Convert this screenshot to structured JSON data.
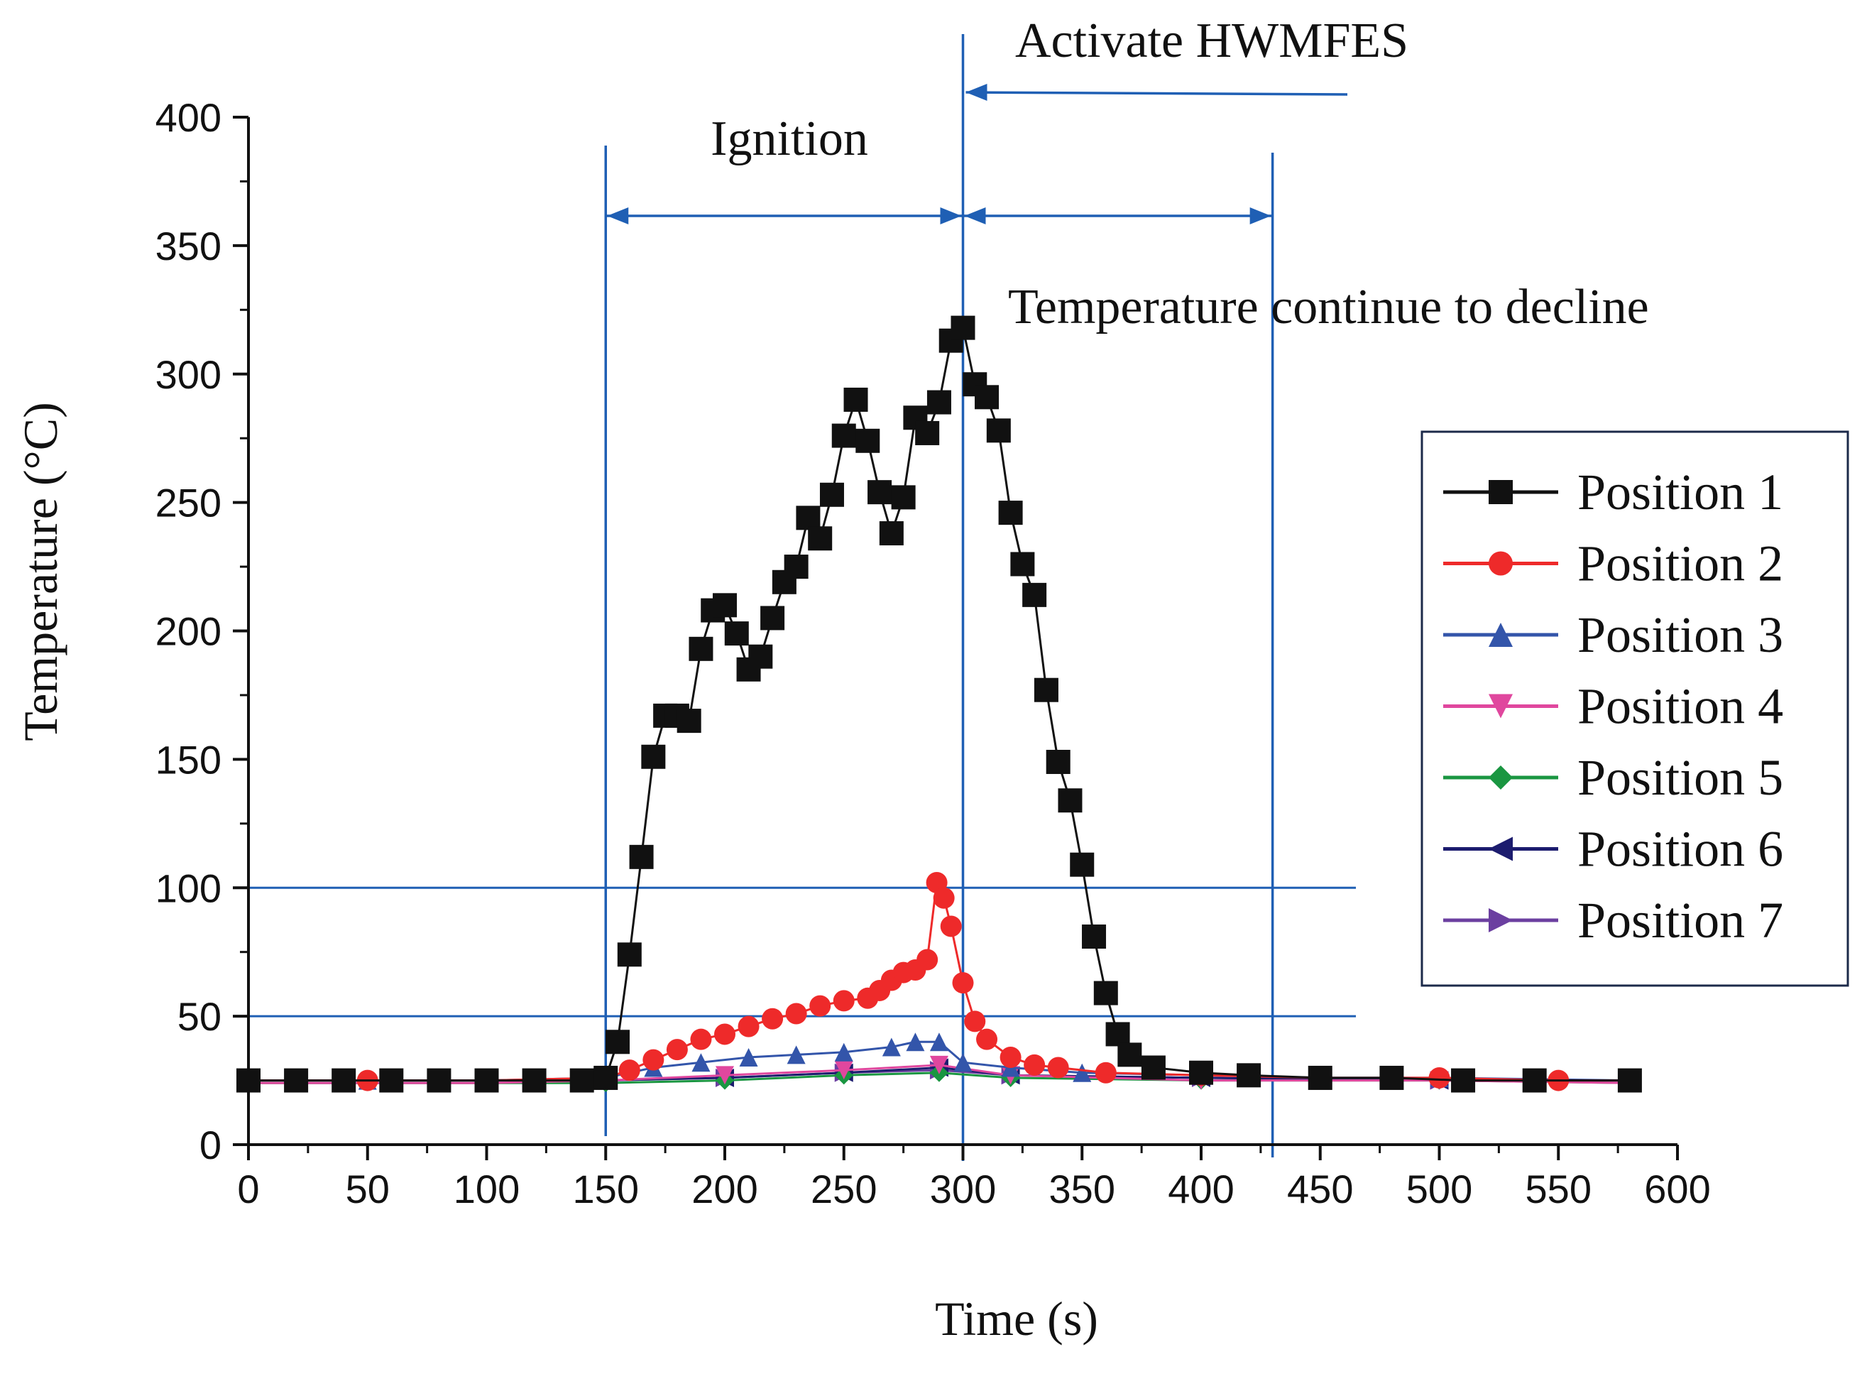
{
  "chart_data": {
    "type": "line",
    "xlabel": "Time (s)",
    "ylabel": "Temperature (°C)",
    "xlim": [
      0,
      600
    ],
    "ylim": [
      0,
      400
    ],
    "xticks": [
      0,
      50,
      100,
      150,
      200,
      250,
      300,
      350,
      400,
      450,
      500,
      550,
      600
    ],
    "yticks": [
      0,
      50,
      100,
      150,
      200,
      250,
      300,
      350,
      400
    ],
    "xtick_labels": [
      "0",
      "50",
      "100",
      "150",
      "200",
      "250",
      "300",
      "350",
      "400",
      "450",
      "500",
      "550",
      "600"
    ],
    "ytick_labels": [
      "0",
      "50",
      "100",
      "150",
      "200",
      "250",
      "300",
      "350",
      "400"
    ],
    "legend_position": "right",
    "series": [
      {
        "name": "Position 1",
        "color": "#111111",
        "marker": "square",
        "x": [
          0,
          20,
          40,
          60,
          80,
          100,
          120,
          140,
          150,
          155,
          160,
          165,
          170,
          175,
          180,
          185,
          190,
          195,
          200,
          205,
          210,
          215,
          220,
          225,
          230,
          235,
          240,
          245,
          250,
          255,
          260,
          265,
          270,
          275,
          280,
          285,
          290,
          295,
          300,
          305,
          310,
          315,
          320,
          325,
          330,
          335,
          340,
          345,
          350,
          355,
          360,
          365,
          370,
          380,
          400,
          420,
          450,
          480,
          510,
          540,
          580
        ],
        "y": [
          25,
          25,
          25,
          25,
          25,
          25,
          25,
          25,
          26,
          40,
          74,
          112,
          151,
          167,
          167,
          165,
          193,
          208,
          210,
          199,
          185,
          190,
          205,
          219,
          225,
          244,
          236,
          253,
          276,
          290,
          274,
          254,
          238,
          252,
          283,
          277,
          289,
          313,
          318,
          296,
          291,
          278,
          246,
          226,
          214,
          177,
          149,
          134,
          109,
          81,
          59,
          43,
          35,
          30,
          28,
          27,
          26,
          26,
          25,
          25,
          25
        ]
      },
      {
        "name": "Position 2",
        "color": "#ee2a2a",
        "marker": "circle",
        "x": [
          0,
          50,
          100,
          150,
          160,
          170,
          180,
          190,
          200,
          210,
          220,
          230,
          240,
          250,
          260,
          265,
          270,
          275,
          280,
          285,
          289,
          292,
          295,
          300,
          305,
          310,
          320,
          330,
          340,
          360,
          400,
          450,
          500,
          550,
          580
        ],
        "y": [
          25,
          25,
          25,
          26,
          29,
          33,
          37,
          41,
          43,
          46,
          49,
          51,
          54,
          56,
          57,
          60,
          64,
          67,
          68,
          72,
          102,
          96,
          85,
          63,
          48,
          41,
          34,
          31,
          30,
          28,
          27,
          26,
          26,
          25,
          25
        ]
      },
      {
        "name": "Position 3",
        "color": "#3355aa",
        "marker": "triangle-up",
        "x": [
          0,
          50,
          100,
          150,
          170,
          190,
          210,
          230,
          250,
          270,
          280,
          290,
          300,
          320,
          350,
          400,
          450,
          500,
          580
        ],
        "y": [
          25,
          25,
          25,
          26,
          30,
          32,
          34,
          35,
          36,
          38,
          40,
          40,
          32,
          30,
          28,
          27,
          26,
          26,
          25
        ]
      },
      {
        "name": "Position 4",
        "color": "#e0479e",
        "marker": "triangle-down",
        "x": [
          0,
          100,
          150,
          200,
          250,
          290,
          320,
          400,
          500,
          580
        ],
        "y": [
          24,
          24,
          25,
          27,
          29,
          31,
          27,
          25,
          25,
          24
        ]
      },
      {
        "name": "Position 5",
        "color": "#1a9641",
        "marker": "diamond",
        "x": [
          0,
          100,
          150,
          200,
          250,
          290,
          320,
          400,
          500,
          580
        ],
        "y": [
          24,
          24,
          24,
          25,
          27,
          28,
          26,
          25,
          25,
          24
        ]
      },
      {
        "name": "Position 6",
        "color": "#1c1c6e",
        "marker": "triangle-left",
        "x": [
          0,
          100,
          150,
          200,
          250,
          290,
          320,
          400,
          500,
          580
        ],
        "y": [
          25,
          25,
          25,
          26,
          28,
          30,
          27,
          26,
          25,
          25
        ]
      },
      {
        "name": "Position 7",
        "color": "#6b3fa0",
        "marker": "triangle-right",
        "x": [
          0,
          100,
          150,
          200,
          250,
          290,
          320,
          400,
          500,
          580
        ],
        "y": [
          25,
          25,
          25,
          26,
          28,
          29,
          27,
          26,
          25,
          25
        ]
      }
    ],
    "reference_lines": {
      "color": "#1f5fb4",
      "vertical_x": [
        150,
        300,
        430
      ],
      "horizontal_y": [
        50,
        100
      ]
    },
    "annotations": {
      "ignition": "Ignition",
      "activate": "Activate HWMFES",
      "decline": "Temperature continue to decline"
    }
  }
}
